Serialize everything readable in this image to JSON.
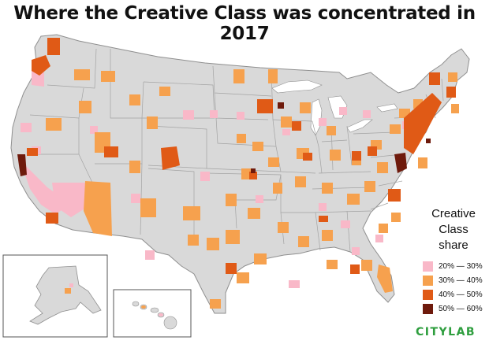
{
  "title": "Where the Creative Class was concentrated in 2017",
  "legend": {
    "title_lines": [
      "Creative",
      "Class",
      "share"
    ],
    "items": [
      {
        "label": "20% — 30%",
        "color": "#f9b8c8"
      },
      {
        "label": "30% — 40%",
        "color": "#f6a14e"
      },
      {
        "label": "40% — 50%",
        "color": "#e05a16"
      },
      {
        "label": "50% — 60%",
        "color": "#6e1a0c"
      }
    ]
  },
  "brand": "CITYLAB",
  "colors": {
    "land": "#d9d9d9",
    "border": "#9a9a9a",
    "background": "#ffffff"
  }
}
